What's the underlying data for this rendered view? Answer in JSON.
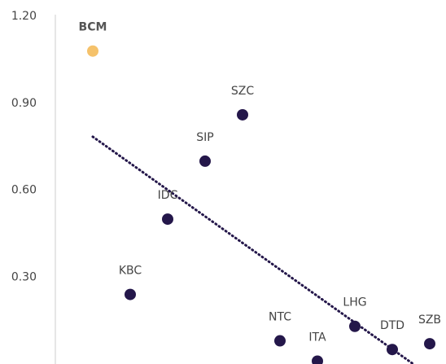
{
  "chart_data": {
    "type": "scatter",
    "categories": [
      "BCM",
      "KBC",
      "IDC",
      "SIP",
      "SZC",
      "NTC",
      "ITA",
      "LHG",
      "DTD",
      "SZB"
    ],
    "values": [
      1.08,
      0.24,
      0.5,
      0.7,
      0.86,
      0.08,
      0.01,
      0.13,
      0.05,
      0.07
    ],
    "colors": [
      "#f5c26b",
      "#24174a",
      "#24174a",
      "#24174a",
      "#24174a",
      "#24174a",
      "#24174a",
      "#24174a",
      "#24174a",
      "#24174a"
    ],
    "bold_labels": [
      "BCM"
    ],
    "ylim": [
      0,
      1.2
    ],
    "yticks": [
      {
        "value": 0.3,
        "label": "0.30"
      },
      {
        "value": 0.6,
        "label": "0.60"
      },
      {
        "value": 0.9,
        "label": "0.90"
      },
      {
        "value": 1.2,
        "label": "1.20"
      }
    ],
    "trendline": "linear",
    "trendline_color": "#24174a"
  }
}
